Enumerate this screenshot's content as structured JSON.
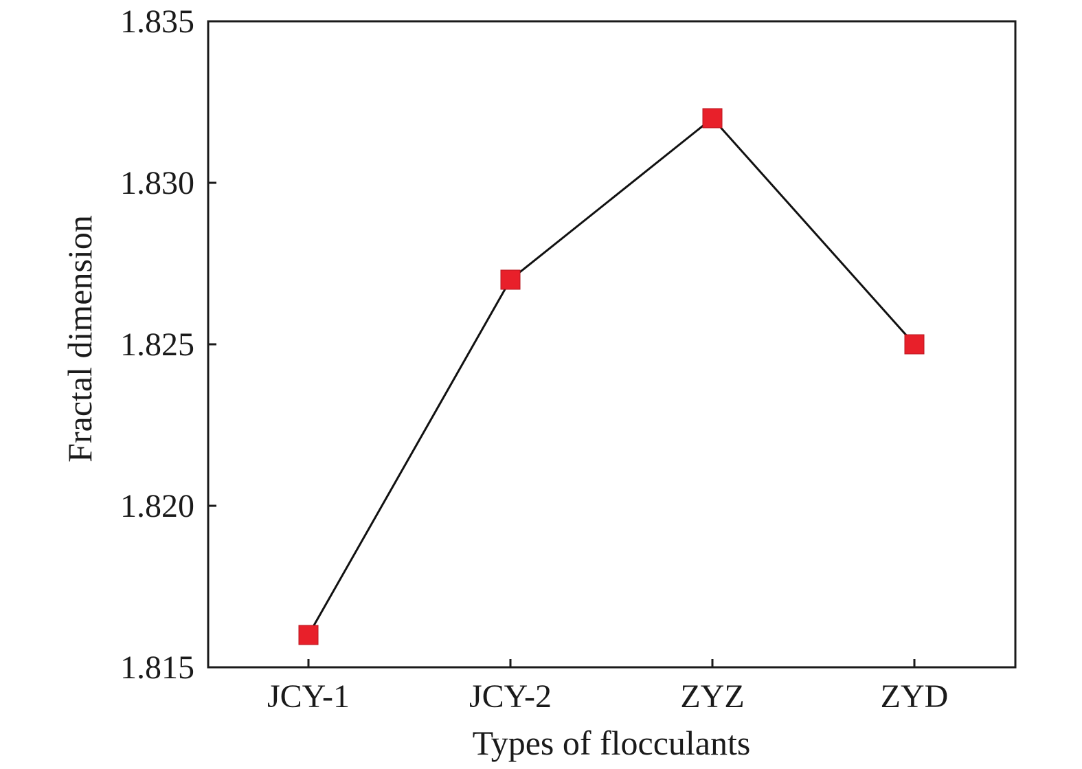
{
  "chart_data": {
    "type": "line",
    "title": "",
    "xlabel": "Types of flocculants",
    "ylabel": "Fractal dimension",
    "categories": [
      "JCY-1",
      "JCY-2",
      "ZYZ",
      "ZYD"
    ],
    "series": [
      {
        "values": [
          1.816,
          1.827,
          1.832,
          1.825
        ]
      }
    ],
    "ylim": [
      1.815,
      1.835
    ],
    "yticks": [
      "1.815",
      "1.820",
      "1.825",
      "1.830",
      "1.835"
    ],
    "grid": false,
    "legend": "none",
    "colors": {
      "line": "#111111",
      "marker": "#e8202a",
      "axis": "#1a1a1a"
    },
    "marker": "square"
  }
}
